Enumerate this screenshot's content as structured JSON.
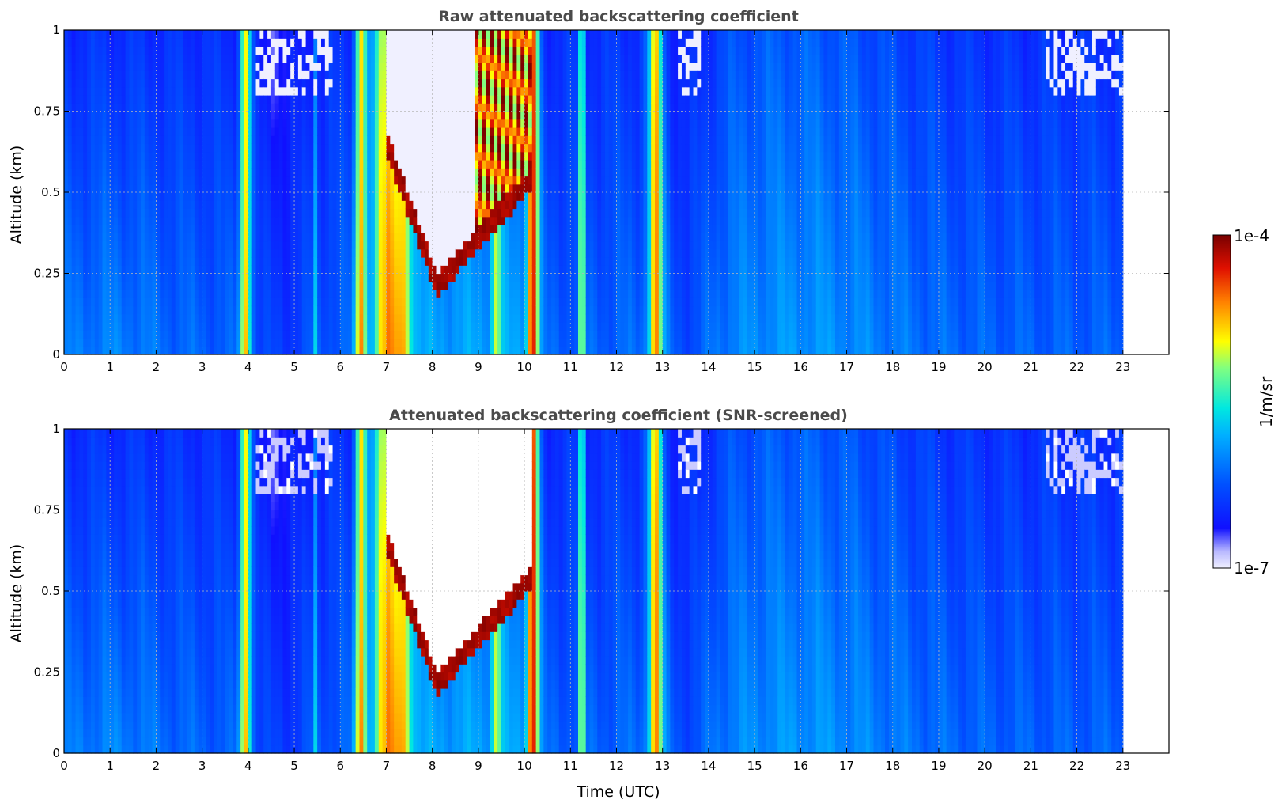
{
  "chart_data": [
    {
      "type": "heatmap",
      "title": "Raw attenuated backscattering coefficient",
      "xlabel": "",
      "ylabel": "Altitude (km)",
      "xlim": [
        0,
        24
      ],
      "ylim": [
        0,
        1
      ],
      "x_ticks": [
        "0",
        "1",
        "2",
        "3",
        "4",
        "5",
        "6",
        "7",
        "8",
        "9",
        "10",
        "11",
        "12",
        "13",
        "14",
        "15",
        "16",
        "17",
        "18",
        "19",
        "20",
        "21",
        "22",
        "23"
      ],
      "y_ticks": [
        "0",
        "0.25",
        "0.5",
        "0.75",
        "1"
      ],
      "data_extent_hours": [
        0,
        23
      ],
      "grid": true,
      "screened": false
    },
    {
      "type": "heatmap",
      "title": "Attenuated backscattering coefficient (SNR-screened)",
      "xlabel": "Time (UTC)",
      "ylabel": "Altitude (km)",
      "xlim": [
        0,
        24
      ],
      "ylim": [
        0,
        1
      ],
      "x_ticks": [
        "0",
        "1",
        "2",
        "3",
        "4",
        "5",
        "6",
        "7",
        "8",
        "9",
        "10",
        "11",
        "12",
        "13",
        "14",
        "15",
        "16",
        "17",
        "18",
        "19",
        "20",
        "21",
        "22",
        "23"
      ],
      "y_ticks": [
        "0",
        "0.25",
        "0.5",
        "0.75",
        "1"
      ],
      "data_extent_hours": [
        0,
        23
      ],
      "grid": true,
      "screened": true
    }
  ],
  "colorbar": {
    "label": "1/m/sr",
    "max_label": "1e-4",
    "min_label": "1e-7",
    "scale": "log",
    "range": [
      1e-07,
      0.0001
    ],
    "colormap": [
      "#f0f0ff",
      "#0000ff",
      "#00c8ff",
      "#ffff00",
      "#ff6000",
      "#780000"
    ]
  }
}
